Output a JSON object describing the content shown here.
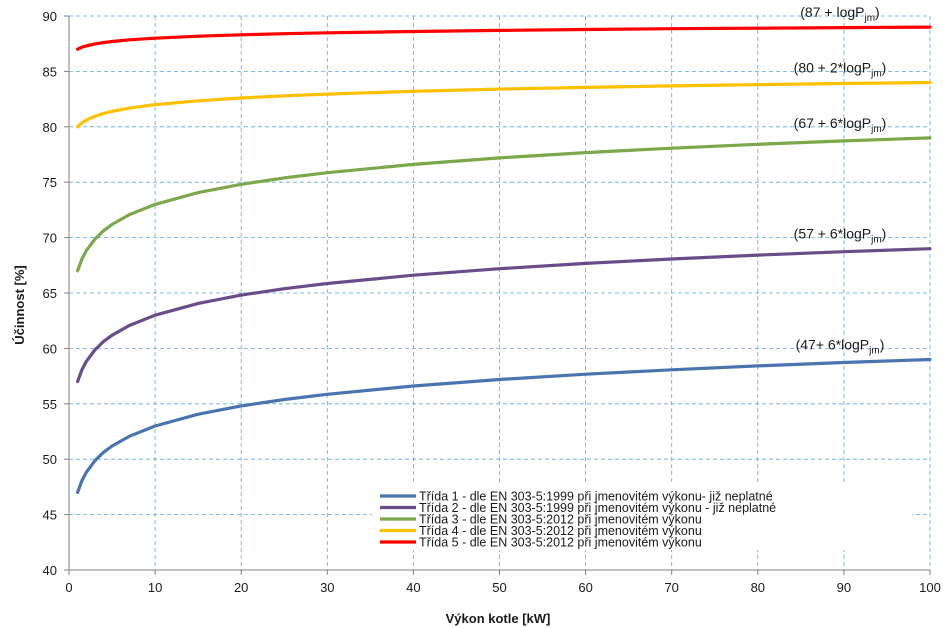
{
  "chart_data": {
    "type": "line",
    "title": "",
    "xlabel": "Výkon kotle [kW]",
    "ylabel": "Účinnost [%]",
    "xlim": [
      0,
      100
    ],
    "ylim": [
      40,
      90
    ],
    "x_ticks": [
      "0",
      "10",
      "20",
      "30",
      "40",
      "50",
      "60",
      "70",
      "80",
      "90",
      "100"
    ],
    "y_ticks": [
      "40",
      "45",
      "50",
      "55",
      "60",
      "65",
      "70",
      "75",
      "80",
      "85",
      "90"
    ],
    "grid": true,
    "grid_style": "dashed",
    "legend_position": "lower-right",
    "x": [
      1,
      1.5,
      2,
      3,
      4,
      5,
      7,
      10,
      15,
      20,
      25,
      30,
      40,
      50,
      60,
      70,
      80,
      90,
      100
    ],
    "series": [
      {
        "name": "Třída 1 - dle EN 303-5:1999 při jmenovitém výkonu- již neplatné",
        "color": "#4a74b0",
        "formula": {
          "base": 47,
          "prefix": "(47+ 6*logP",
          "sub": "jm",
          "suffix": ")"
        },
        "values": [
          47.0,
          48.06,
          48.81,
          49.86,
          50.61,
          51.19,
          52.07,
          53.0,
          54.06,
          54.81,
          55.39,
          55.86,
          56.61,
          57.19,
          57.67,
          58.07,
          58.42,
          58.73,
          59.0
        ]
      },
      {
        "name": "Třída 2 - dle EN 303-5:1999 při jmenovitém výkonu - již neplatné",
        "color": "#6b4c8a",
        "formula": {
          "base": 57,
          "prefix": "(57 + 6*logP",
          "sub": "jm",
          "suffix": ")"
        },
        "values": [
          57.0,
          58.06,
          58.81,
          59.86,
          60.61,
          61.19,
          62.07,
          63.0,
          64.06,
          64.81,
          65.39,
          65.86,
          66.61,
          67.19,
          67.67,
          68.07,
          68.42,
          68.73,
          69.0
        ]
      },
      {
        "name": "Třída 3 - dle EN 303-5:2012 při jmenovitém výkonu",
        "color": "#7aa84a",
        "formula": {
          "base": 67,
          "prefix": "(67 + 6*logP",
          "sub": "jm",
          "suffix": ")"
        },
        "values": [
          67.0,
          68.06,
          68.81,
          69.86,
          70.61,
          71.19,
          72.07,
          73.0,
          74.06,
          74.81,
          75.39,
          75.86,
          76.61,
          77.19,
          77.67,
          78.07,
          78.42,
          78.73,
          79.0
        ]
      },
      {
        "name": "Třída 4 - dle EN 303-5:2012 při jmenovitém výkonu",
        "color": "#ffc000",
        "formula": {
          "base": 80,
          "prefix": "(80 + 2*logP",
          "sub": "jm",
          "suffix": ")"
        },
        "values": [
          80.0,
          80.35,
          80.6,
          80.95,
          81.2,
          81.4,
          81.69,
          82.0,
          82.35,
          82.6,
          82.8,
          82.95,
          83.2,
          83.4,
          83.56,
          83.69,
          83.81,
          83.91,
          84.0
        ]
      },
      {
        "name": "Třída 5 - dle EN 303-5:2012 při jmenovitém výkonu",
        "color": "#ff0000",
        "formula": {
          "base": 87,
          "prefix": "(87 + logP",
          "sub": "jm",
          "suffix": ")"
        },
        "values": [
          87.0,
          87.18,
          87.3,
          87.48,
          87.6,
          87.7,
          87.85,
          88.0,
          88.18,
          88.3,
          88.4,
          88.48,
          88.6,
          88.7,
          88.78,
          88.85,
          88.9,
          88.95,
          89.0
        ]
      }
    ]
  }
}
